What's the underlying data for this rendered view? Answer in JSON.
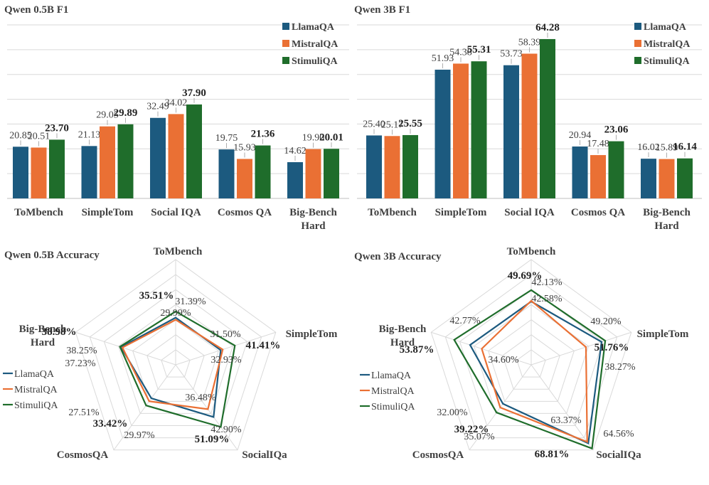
{
  "colors": {
    "llama": "#1c5a7f",
    "mistral": "#ea7034",
    "stimuli": "#1f6d2b",
    "grid": "#d9d9d9",
    "axis": "#bfbfbf",
    "text": "#404040"
  },
  "chart_data": [
    {
      "type": "bar",
      "title": "Qwen 0.5B F1",
      "categories": [
        "ToMbench",
        "SimpleTom",
        "Social IQA",
        "Cosmos QA",
        "Big-Bench Hard"
      ],
      "category_lines": [
        [
          "ToMbench"
        ],
        [
          "SimpleTom"
        ],
        [
          "Social IQA"
        ],
        [
          "Cosmos QA"
        ],
        [
          "Big-Bench",
          "Hard"
        ]
      ],
      "legend": [
        "LlamaQA",
        "MistralQA",
        "StimuliQA"
      ],
      "series": [
        {
          "name": "LlamaQA",
          "values": [
            20.85,
            21.13,
            32.49,
            19.75,
            14.62
          ],
          "labels": [
            "20.85",
            "21.13",
            "32.49",
            "19.75",
            "14.62"
          ]
        },
        {
          "name": "MistralQA",
          "values": [
            20.51,
            29.05,
            34.02,
            15.93,
            19.9
          ],
          "labels": [
            "20.51",
            "29.05",
            "34.02",
            "15.93",
            "19.90"
          ]
        },
        {
          "name": "StimuliQA",
          "values": [
            23.7,
            29.89,
            37.9,
            21.36,
            20.01
          ],
          "labels": [
            "23.70",
            "29.89",
            "37.90",
            "21.36",
            "20.01"
          ]
        }
      ],
      "ylim": [
        0,
        70
      ]
    },
    {
      "type": "bar",
      "title": "Qwen 3B F1",
      "categories": [
        "ToMbench",
        "SimpleTom",
        "Social IQA",
        "Cosmos QA",
        "Big-Bench Hard"
      ],
      "category_lines": [
        [
          "ToMbench"
        ],
        [
          "SimpleTom"
        ],
        [
          "Social IQA"
        ],
        [
          "Cosmos QA"
        ],
        [
          "Big-Bench",
          "Hard"
        ]
      ],
      "legend": [
        "LlamaQA",
        "MistralQA",
        "StimuliQA"
      ],
      "series": [
        {
          "name": "LlamaQA",
          "values": [
            25.4,
            51.93,
            53.73,
            20.94,
            16.02
          ],
          "labels": [
            "25.40",
            "51.93",
            "53.73",
            "20.94",
            "16.02"
          ]
        },
        {
          "name": "MistralQA",
          "values": [
            25.17,
            54.38,
            58.39,
            17.48,
            15.89
          ],
          "labels": [
            "25.17",
            "54.38",
            "58.39",
            "17.48",
            "15.89"
          ]
        },
        {
          "name": "StimuliQA",
          "values": [
            25.55,
            55.31,
            64.28,
            23.06,
            16.14
          ],
          "labels": [
            "25.55",
            "55.31",
            "64.28",
            "23.06",
            "16.14"
          ]
        }
      ],
      "ylim": [
        0,
        70
      ]
    },
    {
      "type": "radar",
      "title": "Qwen 0.5B Accuracy",
      "axes": [
        "ToMbench",
        "SimpleTom",
        "SocialIQa",
        "CosmosQA",
        "Big-Bench Hard"
      ],
      "axis_lines": [
        [
          "ToMbench"
        ],
        [
          "SimpleTom"
        ],
        [
          "SocialIQa"
        ],
        [
          "CosmosQA"
        ],
        [
          "Big-Bench",
          "Hard"
        ]
      ],
      "legend": [
        "LlamaQA",
        "MistralQA",
        "StimuliQA"
      ],
      "series": [
        {
          "name": "LlamaQA",
          "values": [
            31.39,
            31.5,
            42.9,
            27.51,
            38.25
          ],
          "labels": [
            "31.39%",
            "31.50%",
            "42.90%",
            "27.51%",
            "38.25%"
          ]
        },
        {
          "name": "MistralQA",
          "values": [
            29.99,
            32.93,
            36.48,
            29.97,
            37.23
          ],
          "labels": [
            "29.99%",
            "32.93%",
            "36.48%",
            "29.97%",
            "37.23%"
          ]
        },
        {
          "name": "StimuliQA",
          "values": [
            35.51,
            41.41,
            51.09,
            33.42,
            38.98
          ],
          "labels": [
            "35.51%",
            "41.41%",
            "51.09%",
            "33.42%",
            "38.98%"
          ]
        }
      ],
      "rlim": [
        0,
        70
      ]
    },
    {
      "type": "radar",
      "title": "Qwen 3B Accuracy",
      "axes": [
        "ToMbench",
        "SimpleTom",
        "SocialIQa",
        "CosmosQA",
        "Big-Bench Hard"
      ],
      "axis_lines": [
        [
          "ToMbench"
        ],
        [
          "SimpleTom"
        ],
        [
          "SocialIQa"
        ],
        [
          "CosmosQA"
        ],
        [
          "Big-Bench",
          "Hard"
        ]
      ],
      "legend": [
        "LlamaQA",
        "MistralQA",
        "StimuliQA"
      ],
      "series": [
        {
          "name": "LlamaQA",
          "values": [
            42.13,
            49.2,
            64.56,
            32.0,
            42.77
          ],
          "labels": [
            "42.13%",
            "49.20%",
            "64.56%",
            "32.00%",
            "42.77%"
          ]
        },
        {
          "name": "MistralQA",
          "values": [
            42.58,
            38.27,
            63.37,
            35.07,
            34.6
          ],
          "labels": [
            "42.58%",
            "38.27%",
            "63.37%",
            "35.07%",
            "34.60%"
          ]
        },
        {
          "name": "StimuliQA",
          "values": [
            49.69,
            51.76,
            68.81,
            39.22,
            53.87
          ],
          "labels": [
            "49.69%",
            "51.76%",
            "68.81%",
            "39.22%",
            "53.87%"
          ]
        }
      ],
      "rlim": [
        0,
        70
      ]
    }
  ]
}
